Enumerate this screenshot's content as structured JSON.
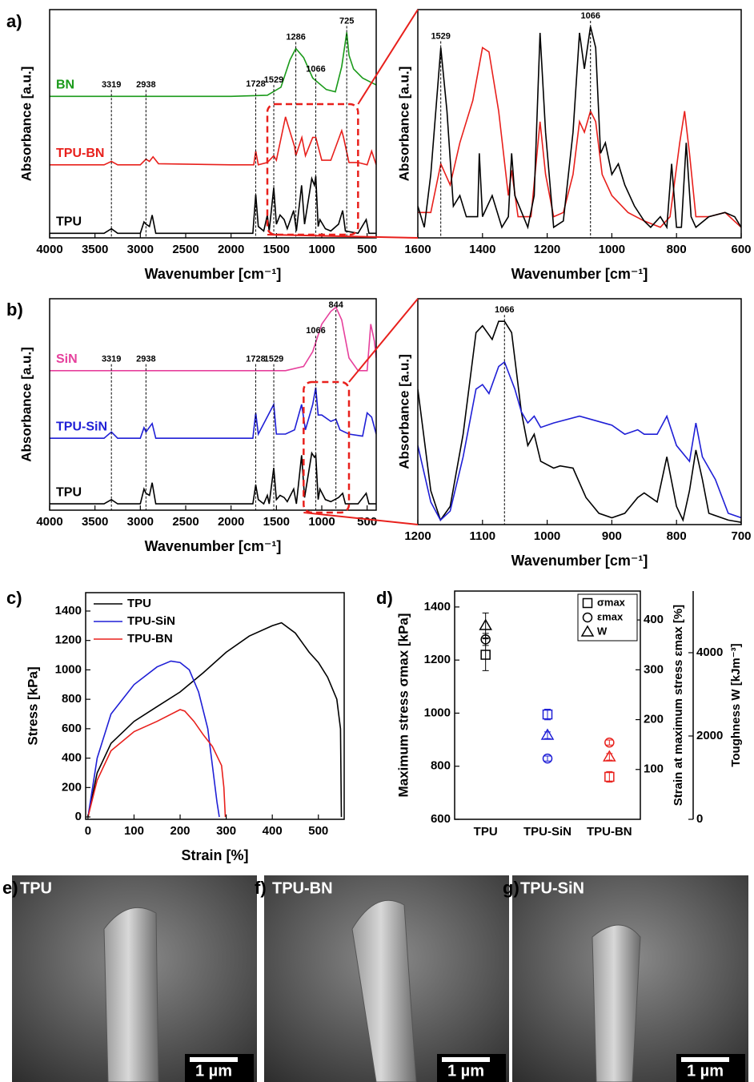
{
  "chart_data": [
    {
      "type": "line",
      "panel": "a)",
      "x_label": "Wavenumber [cm⁻¹]",
      "y_label": "Absorbance [a.u.]",
      "xlim": [
        4000,
        400
      ],
      "xticks": [
        4000,
        3500,
        3000,
        2500,
        2000,
        1500,
        1000,
        500
      ],
      "ylim": [
        0,
        1
      ],
      "series": [
        {
          "name": "BN",
          "color": "#1a9a1a",
          "x": [
            4000,
            2000,
            1600,
            1450,
            1350,
            1286,
            1200,
            1100,
            950,
            850,
            780,
            725,
            700,
            650,
            550,
            450,
            400
          ],
          "values": [
            0.62,
            0.62,
            0.625,
            0.66,
            0.78,
            0.83,
            0.79,
            0.7,
            0.65,
            0.64,
            0.75,
            0.9,
            0.8,
            0.74,
            0.7,
            0.68,
            0.67
          ]
        },
        {
          "name": "TPU-BN",
          "color": "#e8201c",
          "x": [
            4000,
            3400,
            3319,
            3250,
            3000,
            2938,
            2900,
            2860,
            2800,
            2000,
            1750,
            1728,
            1700,
            1600,
            1529,
            1500,
            1400,
            1370,
            1300,
            1286,
            1220,
            1180,
            1100,
            1066,
            1000,
            900,
            780,
            760,
            700,
            600,
            500,
            450,
            400
          ],
          "values": [
            0.32,
            0.32,
            0.335,
            0.32,
            0.32,
            0.345,
            0.335,
            0.355,
            0.325,
            0.32,
            0.32,
            0.38,
            0.32,
            0.33,
            0.36,
            0.34,
            0.53,
            0.49,
            0.4,
            0.36,
            0.44,
            0.36,
            0.44,
            0.44,
            0.34,
            0.34,
            0.47,
            0.44,
            0.33,
            0.33,
            0.32,
            0.38,
            0.32
          ]
        },
        {
          "name": "TPU",
          "color": "#000000",
          "x": [
            4000,
            3400,
            3319,
            3250,
            3000,
            2960,
            2938,
            2900,
            2870,
            2830,
            2000,
            1760,
            1728,
            1700,
            1640,
            1600,
            1580,
            1529,
            1500,
            1460,
            1415,
            1380,
            1310,
            1280,
            1222,
            1190,
            1110,
            1080,
            1066,
            1040,
            1020,
            960,
            900,
            815,
            770,
            740,
            600,
            510,
            480,
            400
          ],
          "values": [
            0.02,
            0.02,
            0.04,
            0.02,
            0.02,
            0.07,
            0.06,
            0.05,
            0.1,
            0.02,
            0.02,
            0.02,
            0.19,
            0.05,
            0.03,
            0.1,
            0.03,
            0.22,
            0.06,
            0.1,
            0.08,
            0.04,
            0.12,
            0.03,
            0.23,
            0.06,
            0.26,
            0.23,
            0.27,
            0.05,
            0.08,
            0.04,
            0.03,
            0.06,
            0.12,
            0.03,
            0.02,
            0.08,
            0.02,
            0.02
          ]
        }
      ],
      "peaks": [
        3319,
        2938,
        1728,
        1529,
        1066,
        1286,
        725
      ]
    },
    {
      "type": "line",
      "x_label": "Wavenumber [cm⁻¹]",
      "y_label": "Absorbance [a.u.]",
      "xlim": [
        1600,
        600
      ],
      "xticks": [
        1600,
        1400,
        1200,
        1000,
        800,
        600
      ],
      "ylim": [
        0,
        1.08
      ],
      "series": [
        {
          "color": "#e8201c",
          "x": [
            1600,
            1560,
            1529,
            1500,
            1470,
            1430,
            1400,
            1380,
            1350,
            1320,
            1310,
            1290,
            1250,
            1222,
            1205,
            1180,
            1150,
            1120,
            1100,
            1085,
            1066,
            1050,
            1030,
            1000,
            950,
            900,
            850,
            820,
            790,
            775,
            760,
            740,
            700,
            650,
            600
          ],
          "values": [
            0.12,
            0.12,
            0.35,
            0.25,
            0.45,
            0.65,
            0.9,
            0.88,
            0.6,
            0.2,
            0.32,
            0.1,
            0.1,
            0.55,
            0.3,
            0.1,
            0.12,
            0.3,
            0.55,
            0.5,
            0.6,
            0.55,
            0.3,
            0.2,
            0.12,
            0.08,
            0.05,
            0.1,
            0.45,
            0.6,
            0.4,
            0.1,
            0.1,
            0.12,
            0.05
          ]
        },
        {
          "color": "#000000",
          "x": [
            1600,
            1580,
            1560,
            1529,
            1510,
            1490,
            1470,
            1450,
            1415,
            1410,
            1400,
            1370,
            1340,
            1320,
            1310,
            1300,
            1260,
            1240,
            1222,
            1205,
            1180,
            1150,
            1120,
            1100,
            1085,
            1066,
            1050,
            1035,
            1020,
            1000,
            980,
            960,
            930,
            900,
            880,
            850,
            830,
            815,
            800,
            785,
            770,
            755,
            740,
            700,
            650,
            620,
            600
          ],
          "values": [
            0.15,
            0.05,
            0.3,
            0.9,
            0.6,
            0.15,
            0.2,
            0.1,
            0.1,
            0.4,
            0.1,
            0.2,
            0.05,
            0.1,
            0.4,
            0.2,
            0.05,
            0.2,
            0.97,
            0.5,
            0.05,
            0.08,
            0.5,
            0.97,
            0.8,
            1.0,
            0.9,
            0.4,
            0.45,
            0.3,
            0.35,
            0.25,
            0.15,
            0.08,
            0.05,
            0.1,
            0.05,
            0.35,
            0.05,
            0.05,
            0.45,
            0.1,
            0.05,
            0.1,
            0.12,
            0.1,
            0.05
          ]
        }
      ],
      "peaks": [
        1529,
        1066
      ]
    },
    {
      "type": "line",
      "panel": "b)",
      "x_label": "Wavenumber [cm⁻¹]",
      "y_label": "Absorbance [a.u.]",
      "xlim": [
        4000,
        400
      ],
      "xticks": [
        4000,
        3500,
        3000,
        2500,
        2000,
        1500,
        1000,
        500
      ],
      "ylim": [
        0,
        1
      ],
      "series": [
        {
          "name": "SiN",
          "color": "#e6409c",
          "x": [
            4000,
            1400,
            1200,
            1100,
            1000,
            900,
            844,
            780,
            700,
            600,
            500,
            460,
            420,
            400
          ],
          "values": [
            0.66,
            0.66,
            0.68,
            0.75,
            0.88,
            0.94,
            0.96,
            0.9,
            0.72,
            0.66,
            0.66,
            0.88,
            0.8,
            0.72
          ]
        },
        {
          "name": "TPU-SiN",
          "color": "#1f1fd6",
          "x": [
            4000,
            3400,
            3319,
            3250,
            3000,
            2960,
            2938,
            2870,
            2830,
            2000,
            1760,
            1728,
            1700,
            1529,
            1500,
            1400,
            1300,
            1222,
            1180,
            1100,
            1066,
            1040,
            1000,
            900,
            844,
            800,
            700,
            550,
            500,
            450,
            400
          ],
          "values": [
            0.34,
            0.34,
            0.37,
            0.34,
            0.34,
            0.39,
            0.37,
            0.41,
            0.34,
            0.34,
            0.34,
            0.46,
            0.36,
            0.5,
            0.36,
            0.36,
            0.38,
            0.5,
            0.38,
            0.5,
            0.58,
            0.45,
            0.45,
            0.42,
            0.43,
            0.38,
            0.36,
            0.35,
            0.46,
            0.44,
            0.36
          ]
        },
        {
          "name": "TPU",
          "color": "#000000",
          "x": [
            4000,
            3400,
            3319,
            3250,
            3000,
            2960,
            2938,
            2900,
            2870,
            2830,
            2000,
            1760,
            1728,
            1700,
            1640,
            1600,
            1580,
            1529,
            1500,
            1460,
            1415,
            1380,
            1310,
            1280,
            1222,
            1190,
            1110,
            1080,
            1066,
            1040,
            1020,
            960,
            900,
            815,
            770,
            740,
            600,
            510,
            480,
            400
          ],
          "values": [
            0.03,
            0.03,
            0.05,
            0.03,
            0.03,
            0.1,
            0.08,
            0.07,
            0.13,
            0.03,
            0.03,
            0.03,
            0.12,
            0.05,
            0.03,
            0.07,
            0.03,
            0.2,
            0.05,
            0.07,
            0.06,
            0.04,
            0.1,
            0.03,
            0.26,
            0.06,
            0.27,
            0.25,
            0.26,
            0.05,
            0.1,
            0.05,
            0.04,
            0.06,
            0.08,
            0.03,
            0.03,
            0.08,
            0.03,
            0.03
          ]
        }
      ],
      "peaks": [
        3319,
        2938,
        1728,
        1529,
        1066,
        844
      ]
    },
    {
      "type": "line",
      "x_label": "Wavenumber [cm⁻¹]",
      "y_label": "Absorbance [a.u.]",
      "xlim": [
        1200,
        700
      ],
      "xticks": [
        1200,
        1100,
        1000,
        900,
        800,
        700
      ],
      "ylim": [
        0,
        1
      ],
      "series": [
        {
          "color": "#000000",
          "x": [
            1200,
            1180,
            1165,
            1150,
            1130,
            1110,
            1100,
            1085,
            1075,
            1066,
            1055,
            1040,
            1030,
            1020,
            1010,
            990,
            980,
            960,
            940,
            920,
            900,
            880,
            860,
            850,
            830,
            815,
            800,
            790,
            780,
            770,
            760,
            750,
            720,
            700
          ],
          "values": [
            0.6,
            0.15,
            0.02,
            0.08,
            0.4,
            0.85,
            0.88,
            0.82,
            0.9,
            0.9,
            0.85,
            0.5,
            0.35,
            0.4,
            0.28,
            0.25,
            0.26,
            0.25,
            0.12,
            0.05,
            0.03,
            0.05,
            0.12,
            0.14,
            0.1,
            0.3,
            0.08,
            0.02,
            0.15,
            0.33,
            0.2,
            0.05,
            0.02,
            0.01
          ]
        },
        {
          "color": "#1f1fd6",
          "x": [
            1200,
            1180,
            1165,
            1150,
            1130,
            1110,
            1100,
            1090,
            1075,
            1066,
            1050,
            1040,
            1030,
            1020,
            1010,
            990,
            950,
            900,
            880,
            860,
            850,
            830,
            815,
            800,
            780,
            770,
            760,
            740,
            720,
            700
          ],
          "values": [
            0.35,
            0.1,
            0.02,
            0.06,
            0.3,
            0.6,
            0.62,
            0.58,
            0.7,
            0.72,
            0.6,
            0.5,
            0.45,
            0.48,
            0.43,
            0.45,
            0.48,
            0.44,
            0.4,
            0.42,
            0.4,
            0.4,
            0.48,
            0.35,
            0.28,
            0.45,
            0.3,
            0.2,
            0.05,
            0.03
          ]
        }
      ],
      "peaks": [
        1066
      ]
    },
    {
      "type": "line",
      "panel": "c)",
      "x_label": "Strain [%]",
      "y_label": "Stress [kPa]",
      "xlim": [
        -5,
        556
      ],
      "xticks": [
        0,
        100,
        200,
        300,
        400,
        500
      ],
      "ylim": [
        -16,
        1525
      ],
      "yticks": [
        0,
        200,
        400,
        600,
        800,
        1000,
        1200,
        1400
      ],
      "legend": "upper left",
      "series": [
        {
          "name": "TPU",
          "color": "#000000",
          "x": [
            0,
            20,
            50,
            100,
            150,
            200,
            250,
            300,
            350,
            400,
            420,
            450,
            480,
            500,
            520,
            540,
            548,
            550
          ],
          "values": [
            0,
            300,
            500,
            650,
            750,
            850,
            980,
            1120,
            1230,
            1300,
            1320,
            1250,
            1120,
            1050,
            950,
            800,
            600,
            0
          ]
        },
        {
          "name": "TPU-SiN",
          "color": "#1f1fd6",
          "x": [
            0,
            20,
            50,
            100,
            150,
            180,
            200,
            220,
            240,
            260,
            280,
            285
          ],
          "values": [
            0,
            400,
            700,
            900,
            1020,
            1060,
            1050,
            1000,
            850,
            600,
            100,
            0
          ]
        },
        {
          "name": "TPU-BN",
          "color": "#e8201c",
          "x": [
            0,
            20,
            50,
            100,
            150,
            200,
            210,
            230,
            250,
            270,
            290,
            295,
            298
          ],
          "values": [
            0,
            250,
            450,
            580,
            650,
            730,
            720,
            650,
            560,
            480,
            350,
            200,
            0
          ]
        }
      ]
    },
    {
      "type": "scatter",
      "panel": "d)",
      "categories": [
        "TPU",
        "TPU-SiN",
        "TPU-BN"
      ],
      "category_colors": [
        "#000000",
        "#1f1fd6",
        "#e8201c"
      ],
      "y_label": "Maximum stress σmax [kPa]",
      "y2_label": "Strain at maximum stress εmax [%]",
      "y3_label": "Toughness W [kJm⁻³]",
      "ylim": [
        600,
        1460
      ],
      "yticks": [
        600,
        800,
        1000,
        1200,
        1400
      ],
      "y2lim": [
        0,
        458
      ],
      "y2ticks": [
        100,
        200,
        300,
        400
      ],
      "y3lim": [
        0,
        5480
      ],
      "y3ticks": [
        0,
        2000,
        4000
      ],
      "legend": "upper right",
      "series": [
        {
          "name": "σmax",
          "marker": "square",
          "values": [
            1220,
            995,
            760
          ],
          "errors": [
            60,
            20,
            20
          ]
        },
        {
          "name": "εmax",
          "marker": "circle",
          "axis": "y2",
          "values": [
            361,
            122,
            154
          ],
          "errors": [
            12,
            5,
            5
          ]
        },
        {
          "name": "W",
          "marker": "triangle",
          "axis": "y3",
          "values": [
            4654,
            2019,
            1500
          ],
          "errors": [
            300,
            80,
            80
          ]
        }
      ]
    }
  ],
  "images": [
    {
      "panel": "e)",
      "label": "TPU",
      "scale_bar": "1 µm"
    },
    {
      "panel": "f)",
      "label": "TPU-BN",
      "scale_bar": "1 µm"
    },
    {
      "panel": "g)",
      "label": "TPU-SiN",
      "scale_bar": "1 µm"
    }
  ]
}
